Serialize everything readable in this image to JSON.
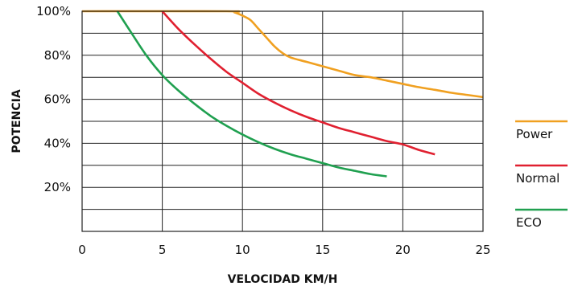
{
  "chart_data": {
    "type": "line",
    "title": "",
    "xlabel": "VELOCIDAD KM/H",
    "ylabel": "POTENCIA",
    "xlim": [
      0,
      25
    ],
    "ylim": [
      0,
      100
    ],
    "x_ticks": [
      0,
      5,
      10,
      15,
      20,
      25
    ],
    "x_tick_labels": [
      "0",
      "5",
      "10",
      "15",
      "20",
      "25"
    ],
    "y_ticks": [
      20,
      40,
      60,
      80,
      100
    ],
    "y_tick_labels": [
      "20%",
      "40%",
      "60%",
      "80%",
      "100%"
    ],
    "grid": true,
    "legend_position": "right",
    "series": [
      {
        "name": "Power",
        "color": "#f0a020",
        "points": [
          [
            0,
            100
          ],
          [
            9,
            100
          ],
          [
            9.5,
            99.5
          ],
          [
            10,
            98
          ],
          [
            10.5,
            96
          ],
          [
            11,
            92
          ],
          [
            11.5,
            88
          ],
          [
            12,
            84
          ],
          [
            12.5,
            81
          ],
          [
            13,
            79
          ],
          [
            14,
            77
          ],
          [
            15,
            75
          ],
          [
            16,
            73
          ],
          [
            17,
            71
          ],
          [
            18,
            70
          ],
          [
            19,
            68.5
          ],
          [
            20,
            67
          ],
          [
            21,
            65.5
          ],
          [
            22,
            64.3
          ],
          [
            23,
            63
          ],
          [
            24,
            62
          ],
          [
            25,
            61
          ]
        ]
      },
      {
        "name": "Normal",
        "color": "#e02030",
        "points": [
          [
            5,
            100
          ],
          [
            6,
            92
          ],
          [
            7,
            85
          ],
          [
            8,
            78.5
          ],
          [
            9,
            72.5
          ],
          [
            10,
            67.5
          ],
          [
            11,
            62.5
          ],
          [
            12,
            58.5
          ],
          [
            13,
            55
          ],
          [
            14,
            52
          ],
          [
            15,
            49.5
          ],
          [
            16,
            47
          ],
          [
            17,
            45
          ],
          [
            18,
            43
          ],
          [
            19,
            41
          ],
          [
            20,
            39.5
          ],
          [
            21,
            37
          ],
          [
            22,
            35
          ]
        ]
      },
      {
        "name": "ECO",
        "color": "#20a050",
        "points": [
          [
            2.2,
            100
          ],
          [
            3,
            91
          ],
          [
            4,
            80
          ],
          [
            5,
            71
          ],
          [
            6,
            64
          ],
          [
            7,
            58
          ],
          [
            8,
            52.5
          ],
          [
            9,
            48
          ],
          [
            10,
            44
          ],
          [
            11,
            40.5
          ],
          [
            12,
            37.5
          ],
          [
            13,
            35
          ],
          [
            14,
            33
          ],
          [
            15,
            31
          ],
          [
            16,
            29
          ],
          [
            17,
            27.5
          ],
          [
            18,
            26
          ],
          [
            19,
            25
          ]
        ]
      }
    ]
  }
}
